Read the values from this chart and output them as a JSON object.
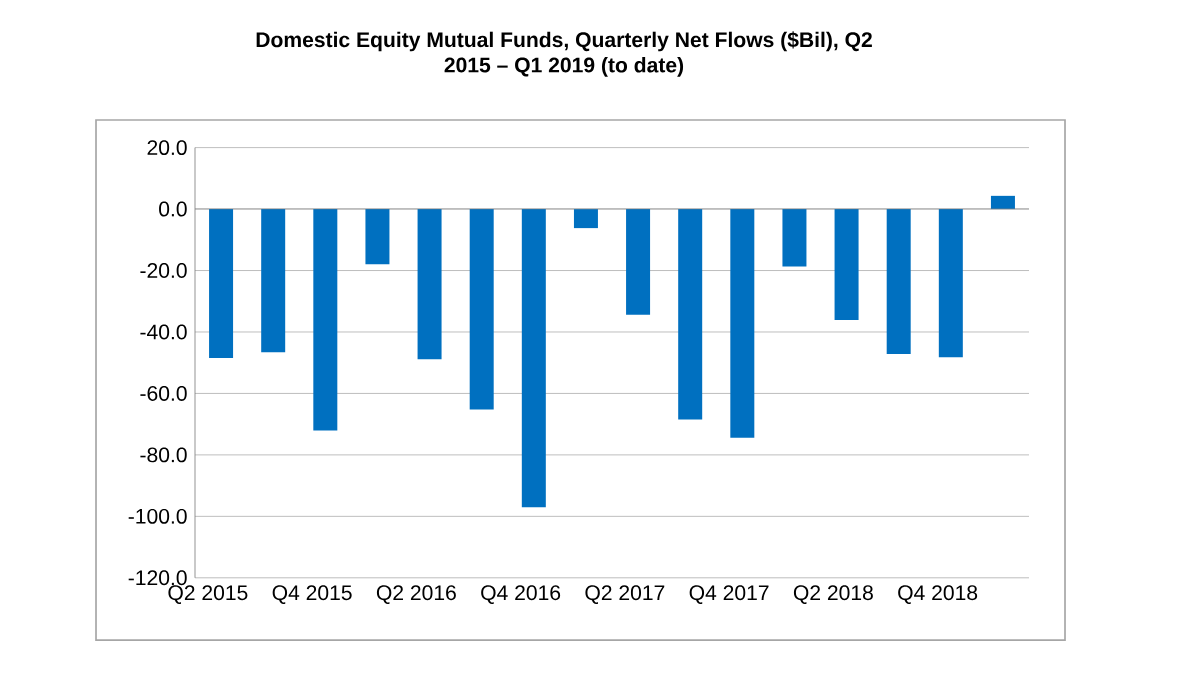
{
  "chart_data": {
    "type": "bar",
    "title": "Domestic Equity Mutual Funds, Quarterly Net Flows ($Bil), Q2\n2015 – Q1 2019 (to date)",
    "categories": [
      "Q2 2015",
      null,
      "Q4 2015",
      null,
      "Q2 2016",
      null,
      "Q4 2016",
      null,
      "Q2 2017",
      null,
      "Q4 2017",
      null,
      "Q2 2018",
      null,
      "Q4 2018",
      null
    ],
    "values": [
      -48.5,
      -46.6,
      -72.1,
      -18.0,
      -48.9,
      -65.2,
      -97.0,
      -6.2,
      -34.4,
      -68.5,
      -74.4,
      -18.7,
      -36.1,
      -47.2,
      -48.2,
      4.3
    ],
    "color": "#0070c0",
    "ylim": [
      -120,
      20
    ],
    "yticks": [
      {
        "value": -120,
        "label": "-120.0"
      },
      {
        "value": -100,
        "label": "-100.0"
      },
      {
        "value": -80,
        "label": "-80.0"
      },
      {
        "value": -60,
        "label": "-60.0"
      },
      {
        "value": -40,
        "label": "-40.0"
      },
      {
        "value": -20,
        "label": "-20.0"
      },
      {
        "value": 0,
        "label": "0.0"
      },
      {
        "value": 20,
        "label": "20.0"
      }
    ],
    "grid": "y"
  }
}
